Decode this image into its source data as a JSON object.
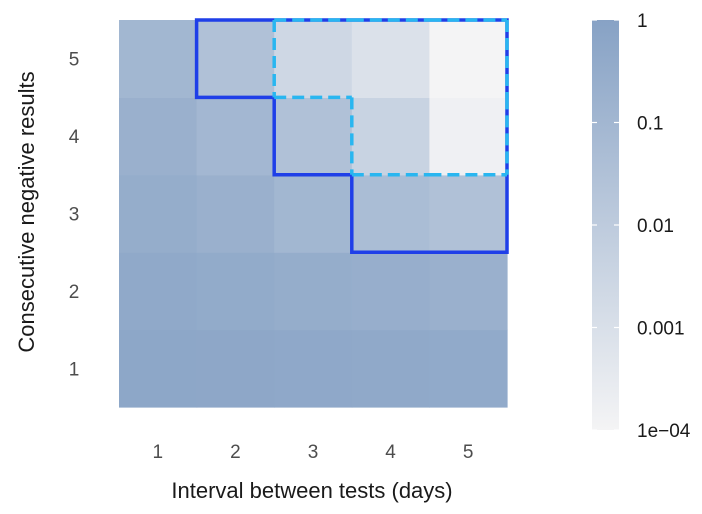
{
  "chart_data": {
    "type": "heatmap",
    "xlabel": "Interval between tests (days)",
    "ylabel": "Consecutive negative results",
    "x_categories": [
      "1",
      "2",
      "3",
      "4",
      "5"
    ],
    "y_categories": [
      "1",
      "2",
      "3",
      "4",
      "5"
    ],
    "scale": "log10",
    "color_range": [
      0.0001,
      1
    ],
    "color_low": "#f4f4f5",
    "color_high": "#87a2c5",
    "values": [
      [
        0.6,
        0.55,
        0.5,
        0.45,
        0.42
      ],
      [
        0.45,
        0.38,
        0.3,
        0.25,
        0.2
      ],
      [
        0.3,
        0.2,
        0.1,
        0.05,
        0.03
      ],
      [
        0.2,
        0.09,
        0.03,
        0.004,
        0.00015
      ],
      [
        0.1,
        0.03,
        0.0025,
        0.0008,
        0.0001
      ]
    ],
    "legend": {
      "ticks": [
        {
          "value": 1,
          "label": "1"
        },
        {
          "value": 0.1,
          "label": "0.1"
        },
        {
          "value": 0.01,
          "label": "0.01"
        },
        {
          "value": 0.001,
          "label": "0.001"
        },
        {
          "value": 0.0001,
          "label": "1e−04"
        }
      ]
    },
    "outlines": [
      {
        "name": "solid-region",
        "color": "#1f3fe8",
        "style": "solid",
        "cells": [
          [
            2,
            5
          ],
          [
            3,
            5
          ],
          [
            4,
            5
          ],
          [
            5,
            5
          ],
          [
            3,
            4
          ],
          [
            4,
            4
          ],
          [
            5,
            4
          ],
          [
            4,
            3
          ],
          [
            5,
            3
          ]
        ]
      },
      {
        "name": "dashed-region",
        "color": "#29b6f0",
        "style": "dashed",
        "cells": [
          [
            3,
            5
          ],
          [
            4,
            5
          ],
          [
            5,
            5
          ],
          [
            4,
            4
          ],
          [
            5,
            4
          ]
        ]
      }
    ]
  }
}
